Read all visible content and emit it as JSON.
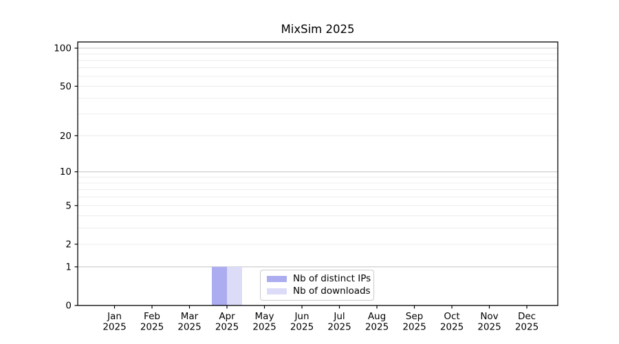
{
  "chart_data": {
    "type": "bar",
    "title": "MixSim 2025",
    "categories": [
      "Jan",
      "Feb",
      "Mar",
      "Apr",
      "May",
      "Jun",
      "Jul",
      "Aug",
      "Sep",
      "Oct",
      "Nov",
      "Dec"
    ],
    "category_year": "2025",
    "series": [
      {
        "name": "Nb of distinct IPs",
        "color": "#acacf0",
        "values": [
          0,
          0,
          0,
          1,
          0,
          0,
          0,
          0,
          0,
          0,
          0,
          0
        ]
      },
      {
        "name": "Nb of downloads",
        "color": "#dcdcf8",
        "values": [
          0,
          0,
          0,
          1,
          0,
          0,
          0,
          0,
          0,
          0,
          0,
          0
        ]
      }
    ],
    "xlabel": "",
    "ylabel": "",
    "y_scale": "log10(value+1)",
    "y_tick_values": [
      0,
      1,
      2,
      5,
      10,
      20,
      50,
      100
    ],
    "y_major_grid_values": [
      1,
      10,
      100
    ],
    "y_minor_grid_values": [
      2,
      3,
      4,
      5,
      6,
      7,
      8,
      9,
      20,
      30,
      40,
      50,
      60,
      70,
      80,
      90
    ],
    "ylim": [
      0,
      112
    ],
    "grid": "on",
    "legend_position": "lower center",
    "colors": {
      "frame": "#000000",
      "tick_text": "#000000",
      "major_grid": "#c8c8c8",
      "minor_grid": "#ececec",
      "legend_border": "#cbcbcb",
      "background": "#ffffff"
    }
  }
}
